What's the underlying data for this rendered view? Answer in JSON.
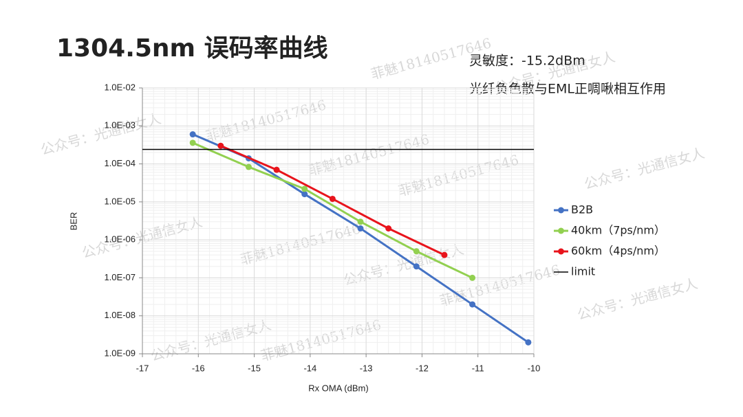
{
  "chart_data": {
    "type": "line",
    "title": "1304.5nm 误码率曲线",
    "annotations": [
      "灵敏度：-15.2dBm",
      "光纤负色散与EML正啁啾相互作用"
    ],
    "watermarks": [
      "公众号：光通信女人",
      "菲魅18140517646"
    ],
    "xlabel": "Rx  OMA (dBm)",
    "ylabel": "BER",
    "xlim": [
      -17,
      -10
    ],
    "xticks": [
      -17,
      -16,
      -15,
      -14,
      -13,
      -12,
      -11,
      -10
    ],
    "ylim": [
      1e-09,
      0.01
    ],
    "log_y": true,
    "grid": true,
    "yticks": [
      {
        "value": 1e-09,
        "label": "1.0E-09"
      },
      {
        "value": 1e-08,
        "label": "1.0E-08"
      },
      {
        "value": 1e-07,
        "label": "1.0E-07"
      },
      {
        "value": 1e-06,
        "label": "1.0E-06"
      },
      {
        "value": 1e-05,
        "label": "1.0E-05"
      },
      {
        "value": 0.0001,
        "label": "1.0E-04"
      },
      {
        "value": 0.001,
        "label": "1.0E-03"
      },
      {
        "value": 0.01,
        "label": "1.0E-02"
      }
    ],
    "series": [
      {
        "name": "B2B",
        "color": "#4472c4",
        "markers": true,
        "x": [
          -16.1,
          -15.1,
          -14.1,
          -13.1,
          -12.1,
          -11.1,
          -10.1
        ],
        "values": [
          0.0006,
          0.00014,
          1.6e-05,
          2e-06,
          2e-07,
          2e-08,
          2e-09
        ]
      },
      {
        "name": "40km（7ps/nm）",
        "color": "#92d050",
        "markers": true,
        "x": [
          -16.1,
          -15.1,
          -14.1,
          -13.1,
          -12.1,
          -11.1
        ],
        "values": [
          0.00036,
          8.3e-05,
          2.2e-05,
          3e-06,
          5e-07,
          1e-07
        ]
      },
      {
        "name": "60km（4ps/nm）",
        "color": "#e8141c",
        "markers": true,
        "x": [
          -15.6,
          -14.6,
          -13.6,
          -12.6,
          -11.6
        ],
        "values": [
          0.0003,
          7e-05,
          1.2e-05,
          2e-06,
          4e-07
        ]
      },
      {
        "name": "limit",
        "color": "#000000",
        "markers": false,
        "x": [
          -17,
          -10
        ],
        "values": [
          0.00024,
          0.00024
        ]
      }
    ]
  }
}
